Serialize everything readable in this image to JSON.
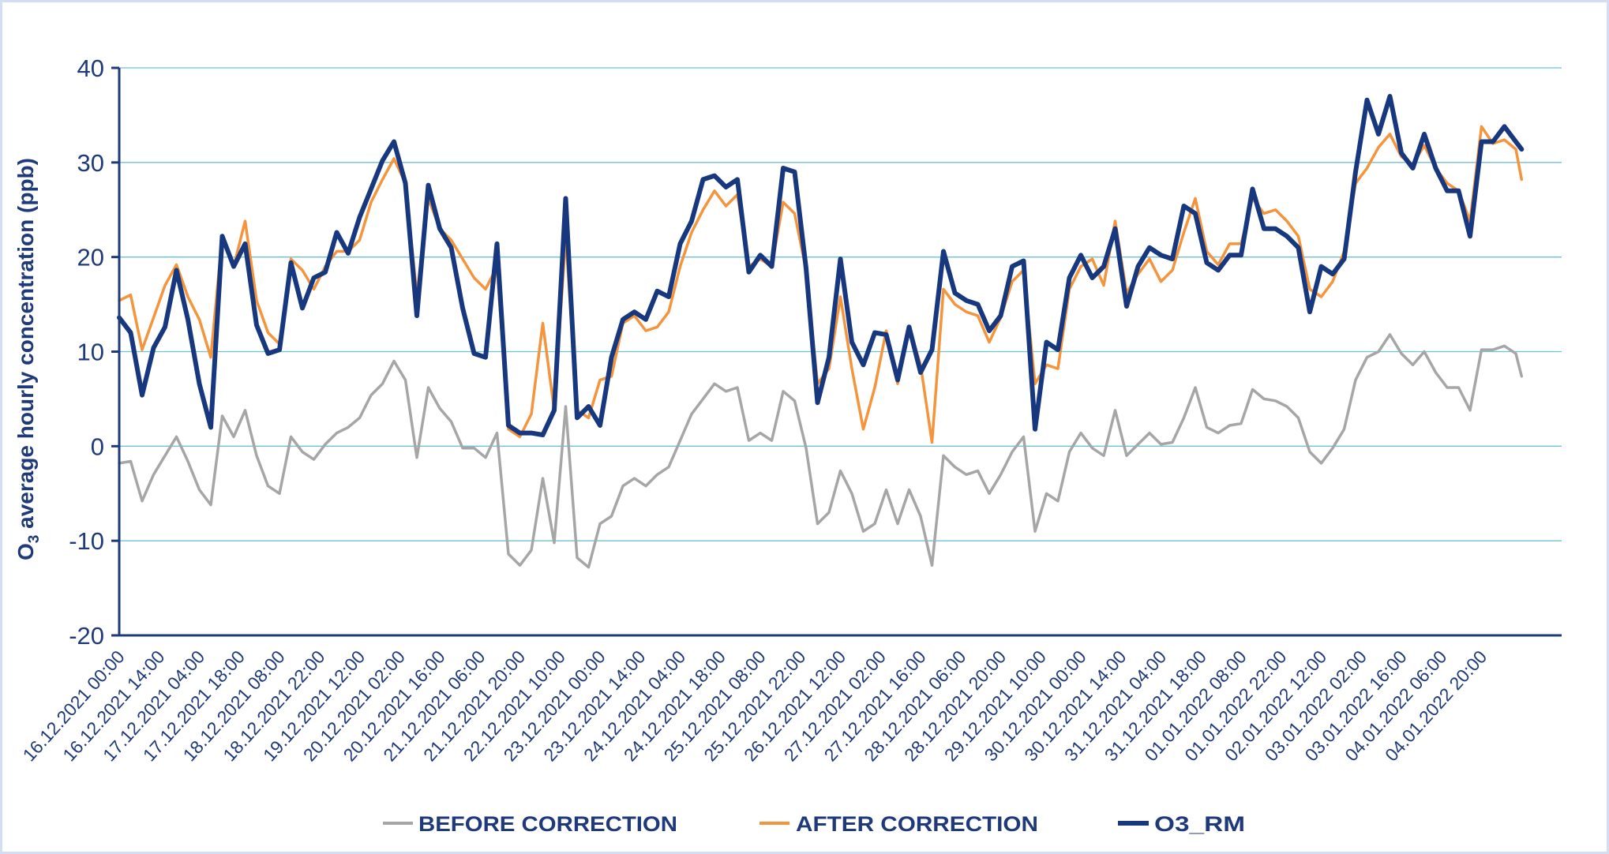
{
  "chart_data": {
    "type": "line",
    "title": "",
    "ylabel": {
      "main": "O",
      "sub": "3",
      "rest": " average hourly concentration (ppb)"
    },
    "xlabel": "",
    "ylim": [
      -20,
      40
    ],
    "yticks": [
      "40",
      "30",
      "20",
      "10",
      "0",
      "-10",
      "-20"
    ],
    "ytick_values": [
      40,
      30,
      20,
      10,
      0,
      -10,
      -20
    ],
    "grid": true,
    "legend_position": "bottom",
    "xtick_labels": [
      "16.12.2021 00:00",
      "16.12.2021 14:00",
      "17.12.2021 04:00",
      "17.12.2021 18:00",
      "18.12.2021 08:00",
      "18.12.2021 22:00",
      "19.12.2021 12:00",
      "20.12.2021 02:00",
      "20.12.2021 16:00",
      "21.12.2021 06:00",
      "21.12.2021 20:00",
      "22.12.2021 10:00",
      "23.12.2021 00:00",
      "23.12.2021 14:00",
      "24.12.2021 04:00",
      "24.12.2021 18:00",
      "25.12.2021 08:00",
      "25.12.2021 22:00",
      "26.12.2021 12:00",
      "27.12.2021 02:00",
      "27.12.2021 16:00",
      "28.12.2021 06:00",
      "28.12.2021 20:00",
      "29.12.2021 10:00",
      "30.12.2021 00:00",
      "30.12.2021 14:00",
      "31.12.2021 04:00",
      "31.12.2021 18:00",
      "01.01.2022 08:00",
      "01.01.2022 22:00",
      "02.01.2022 12:00",
      "03.01.2022 02:00",
      "03.01.2022 16:00",
      "04.01.2022 06:00",
      "04.01.2022 20:00"
    ],
    "x": [
      "16.12.2021 00:00",
      "16.12.2021 04:00",
      "16.12.2021 08:00",
      "16.12.2021 12:00",
      "16.12.2021 16:00",
      "16.12.2021 20:00",
      "17.12.2021 00:00",
      "17.12.2021 04:00",
      "17.12.2021 08:00",
      "17.12.2021 12:00",
      "17.12.2021 16:00",
      "17.12.2021 20:00",
      "18.12.2021 00:00",
      "18.12.2021 04:00",
      "18.12.2021 08:00",
      "18.12.2021 12:00",
      "18.12.2021 16:00",
      "18.12.2021 20:00",
      "19.12.2021 00:00",
      "19.12.2021 04:00",
      "19.12.2021 08:00",
      "19.12.2021 12:00",
      "19.12.2021 16:00",
      "19.12.2021 20:00",
      "20.12.2021 00:00",
      "20.12.2021 04:00",
      "20.12.2021 08:00",
      "20.12.2021 12:00",
      "20.12.2021 16:00",
      "20.12.2021 20:00",
      "21.12.2021 00:00",
      "21.12.2021 04:00",
      "21.12.2021 08:00",
      "21.12.2021 12:00",
      "21.12.2021 16:00",
      "21.12.2021 20:00",
      "22.12.2021 00:00",
      "22.12.2021 04:00",
      "22.12.2021 08:00",
      "22.12.2021 12:00",
      "22.12.2021 16:00",
      "22.12.2021 20:00",
      "23.12.2021 00:00",
      "23.12.2021 04:00",
      "23.12.2021 08:00",
      "23.12.2021 12:00",
      "23.12.2021 16:00",
      "23.12.2021 20:00",
      "24.12.2021 00:00",
      "24.12.2021 04:00",
      "24.12.2021 08:00",
      "24.12.2021 12:00",
      "24.12.2021 16:00",
      "24.12.2021 20:00",
      "25.12.2021 00:00",
      "25.12.2021 04:00",
      "25.12.2021 08:00",
      "25.12.2021 12:00",
      "25.12.2021 16:00",
      "25.12.2021 20:00",
      "26.12.2021 00:00",
      "26.12.2021 04:00",
      "26.12.2021 08:00",
      "26.12.2021 12:00",
      "26.12.2021 16:00",
      "26.12.2021 20:00",
      "27.12.2021 00:00",
      "27.12.2021 04:00",
      "27.12.2021 08:00",
      "27.12.2021 12:00",
      "27.12.2021 16:00",
      "27.12.2021 20:00",
      "28.12.2021 00:00",
      "28.12.2021 04:00",
      "28.12.2021 08:00",
      "28.12.2021 12:00",
      "28.12.2021 16:00",
      "28.12.2021 20:00",
      "29.12.2021 00:00",
      "29.12.2021 04:00",
      "29.12.2021 08:00",
      "29.12.2021 12:00",
      "29.12.2021 16:00",
      "29.12.2021 20:00",
      "30.12.2021 00:00",
      "30.12.2021 04:00",
      "30.12.2021 08:00",
      "30.12.2021 12:00",
      "30.12.2021 16:00",
      "30.12.2021 20:00",
      "31.12.2021 00:00",
      "31.12.2021 04:00",
      "31.12.2021 08:00",
      "31.12.2021 12:00",
      "31.12.2021 16:00",
      "31.12.2021 20:00",
      "01.01.2022 00:00",
      "01.01.2022 04:00",
      "01.01.2022 08:00",
      "01.01.2022 12:00",
      "01.01.2022 16:00",
      "01.01.2022 20:00",
      "02.01.2022 00:00",
      "02.01.2022 04:00",
      "02.01.2022 08:00",
      "02.01.2022 12:00",
      "02.01.2022 16:00",
      "02.01.2022 20:00",
      "03.01.2022 00:00",
      "03.01.2022 04:00",
      "03.01.2022 08:00",
      "03.01.2022 12:00",
      "03.01.2022 16:00",
      "03.01.2022 20:00",
      "04.01.2022 00:00",
      "04.01.2022 04:00",
      "04.01.2022 08:00",
      "04.01.2022 12:00",
      "04.01.2022 16:00",
      "04.01.2022 20:00",
      "05.01.2022 00:00",
      "05.01.2022 04:00",
      "05.01.2022 08:00",
      "05.01.2022 10:00"
    ],
    "series": [
      {
        "name": "BEFORE CORRECTION",
        "color": "#A6A6A6",
        "values": [
          -1.8,
          -1.6,
          -5.8,
          -3,
          -1,
          1,
          -1.6,
          -4.6,
          -6.2,
          3.2,
          1,
          3.8,
          -1,
          -4.2,
          -5,
          1,
          -0.6,
          -1.4,
          0.2,
          1.4,
          2,
          3,
          5.4,
          6.6,
          9,
          7,
          -1.2,
          6.2,
          4,
          2.6,
          -0.2,
          -0.2,
          -1.2,
          1.4,
          -11.4,
          -12.6,
          -11,
          -3.4,
          -10.2,
          4.2,
          -11.8,
          -12.8,
          -8.2,
          -7.4,
          -4.2,
          -3.4,
          -4.2,
          -3,
          -2.2,
          0.6,
          3.4,
          5,
          6.6,
          5.8,
          6.2,
          0.6,
          1.4,
          0.6,
          5.8,
          4.8,
          -0.2,
          -8.2,
          -7,
          -2.6,
          -5,
          -9,
          -8.2,
          -4.6,
          -8.2,
          -4.6,
          -7.4,
          -12.6,
          -1,
          -2.2,
          -3,
          -2.6,
          -5,
          -3,
          -0.6,
          1,
          -9,
          -5,
          -5.8,
          -0.6,
          1.4,
          -0.2,
          -1,
          3.8,
          -1,
          0.2,
          1.4,
          0.2,
          0.4,
          3,
          6.2,
          2,
          1.4,
          2.2,
          2.4,
          6,
          5,
          4.8,
          4.2,
          3,
          -0.6,
          -1.8,
          -0.2,
          1.8,
          7,
          9.4,
          10,
          11.8,
          9.8,
          8.6,
          10,
          7.8,
          6.2,
          6.2,
          3.8,
          10.2,
          10.2,
          10.6,
          9.8,
          7.4
        ]
      },
      {
        "name": "AFTER CORRECTION",
        "color": "#F4943C",
        "values": [
          15.4,
          16,
          10.2,
          13.6,
          17,
          19.2,
          15.8,
          13.4,
          9.4,
          22.2,
          19,
          23.8,
          15.4,
          12,
          10.8,
          19.8,
          18.6,
          16.6,
          19,
          20.6,
          20.6,
          21.8,
          25.8,
          28.2,
          30.4,
          27.8,
          16,
          26.2,
          23,
          21.8,
          19.8,
          17.8,
          16.6,
          19,
          1.8,
          1,
          3.4,
          13,
          3.8,
          22.2,
          3.8,
          3,
          7,
          7.4,
          13,
          13.8,
          12.2,
          12.6,
          14.2,
          19,
          22.6,
          25,
          27,
          25.4,
          26.6,
          19,
          19.8,
          19,
          25.8,
          24.6,
          18.6,
          6.6,
          8.2,
          15.8,
          8.2,
          1.8,
          6.2,
          12.2,
          6.6,
          12.6,
          8.6,
          0.4,
          16.6,
          15,
          14.2,
          13.8,
          11,
          13.6,
          17.4,
          18.6,
          6.6,
          8.6,
          8.2,
          16.6,
          19,
          19.8,
          17,
          23.8,
          16.2,
          18.2,
          19.8,
          17.4,
          18.6,
          22.6,
          26.2,
          20.6,
          19.2,
          21.4,
          21.4,
          26.2,
          24.6,
          25,
          23.8,
          22.2,
          16.6,
          15.8,
          17.4,
          20.6,
          27.8,
          29.4,
          31.6,
          33,
          30.6,
          29.8,
          31.8,
          29.4,
          27.8,
          27,
          23.8,
          33.8,
          32,
          32.4,
          31.4,
          28.2
        ]
      },
      {
        "name": "O3_RM",
        "color": "#17387E",
        "values": [
          13.6,
          12,
          5.4,
          10.4,
          12.6,
          18.6,
          13.4,
          6.6,
          2,
          22.2,
          19,
          21.4,
          12.8,
          9.8,
          10.2,
          19.4,
          14.6,
          17.8,
          18.4,
          22.6,
          20.4,
          24.2,
          27.2,
          30.2,
          32.2,
          27.8,
          13.8,
          27.6,
          23,
          21,
          14.6,
          9.8,
          9.4,
          21.4,
          2.2,
          1.4,
          1.4,
          1.2,
          3.8,
          26.2,
          3,
          4.2,
          2.2,
          9.4,
          13.4,
          14.2,
          13.4,
          16.4,
          15.8,
          21.4,
          23.8,
          28.2,
          28.6,
          27.4,
          28.2,
          18.4,
          20.2,
          19,
          29.4,
          29,
          18.8,
          4.6,
          9.4,
          19.8,
          11,
          8.6,
          12,
          11.8,
          7,
          12.6,
          7.8,
          10.2,
          20.6,
          16.2,
          15.4,
          15,
          12.2,
          13.8,
          19,
          19.6,
          1.8,
          11,
          10.2,
          17.8,
          20.2,
          17.8,
          19,
          23,
          14.8,
          19,
          21,
          20.2,
          19.8,
          25.4,
          24.6,
          19.4,
          18.6,
          20.2,
          20.2,
          27.2,
          23,
          23,
          22.2,
          21,
          14.2,
          19,
          18.2,
          19.8,
          29,
          36.6,
          33,
          37,
          31,
          29.4,
          33,
          29.4,
          27,
          27,
          22.2,
          32.2,
          32.2,
          33.8,
          32.2,
          31.4
        ]
      }
    ],
    "colors": {
      "axis": "#1F3A7A",
      "grid": "#6CC3D5",
      "frame": "#D3DEF5"
    }
  }
}
